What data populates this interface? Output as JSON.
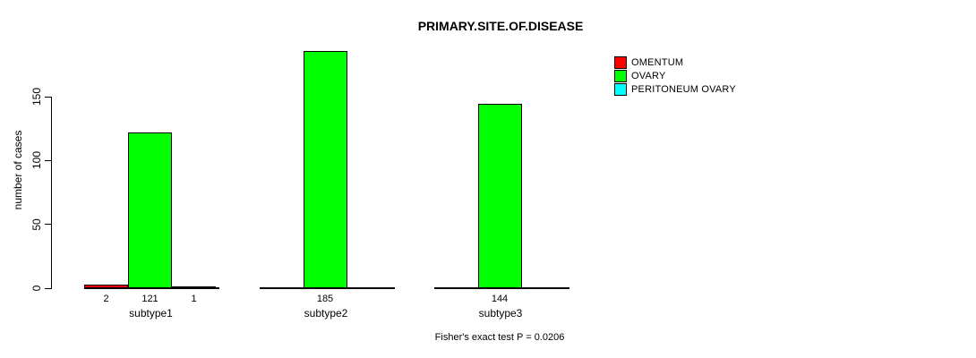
{
  "chart_data": {
    "type": "bar",
    "title": "PRIMARY.SITE.OF.DISEASE",
    "ylabel": "number of cases",
    "xlabel": "",
    "categories": [
      "subtype1",
      "subtype2",
      "subtype3"
    ],
    "series": [
      {
        "name": "OMENTUM",
        "color": "#FF0000",
        "values": [
          2,
          0,
          0
        ]
      },
      {
        "name": "OVARY",
        "color": "#00FF00",
        "values": [
          121,
          185,
          144
        ]
      },
      {
        "name": "PERITONEUM OVARY",
        "color": "#00FFFF",
        "values": [
          1,
          0,
          0
        ]
      }
    ],
    "bar_value_labels": [
      [
        "2",
        "121",
        "1"
      ],
      [
        "",
        "185",
        ""
      ],
      [
        "",
        "144",
        ""
      ]
    ],
    "yticks": [
      0,
      50,
      100,
      150
    ],
    "ylim": [
      0,
      185
    ],
    "grid": false,
    "legend_position": "top-right",
    "annotation": "Fisher's exact test P = 0.0206",
    "axis_color": "#000000",
    "text_color": "#000000",
    "background": "#FFFFFF"
  }
}
